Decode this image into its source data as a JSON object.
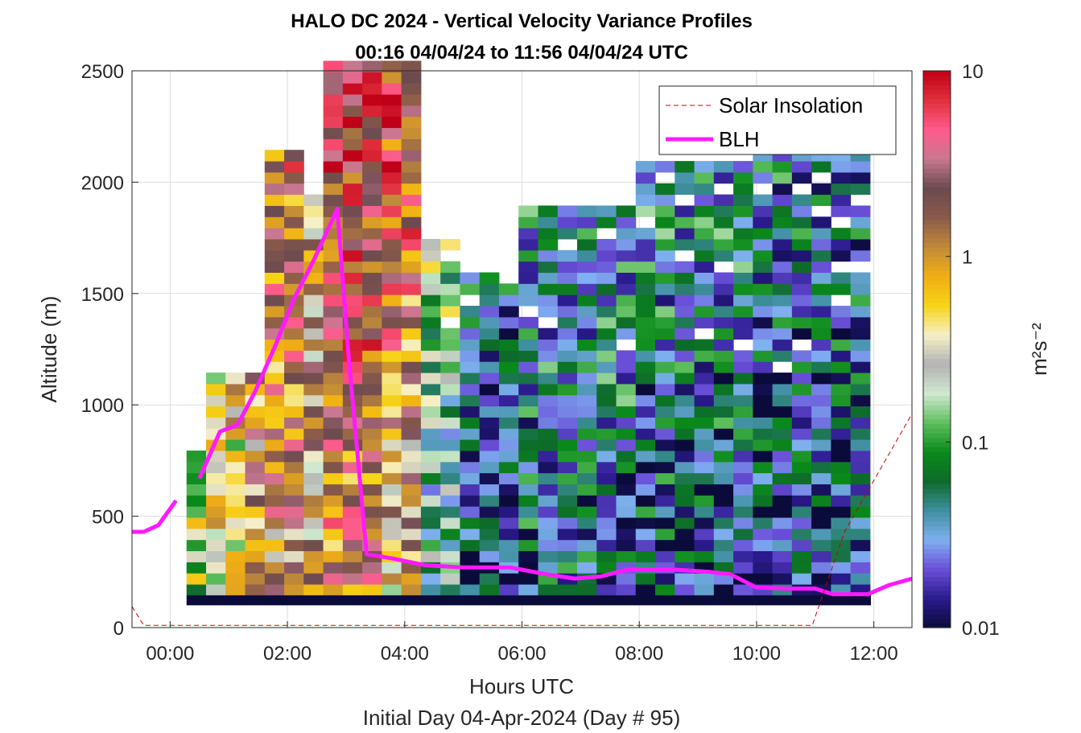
{
  "chart_data": {
    "type": "heatmap",
    "title": "HALO DC 2024 - Vertical Velocity Variance Profiles",
    "subtitle": "00:16 04/04/24 to 11:56 04/04/24  UTC",
    "xlabel": "Hours UTC",
    "xlabel2": "Initial Day 04-Apr-2024 (Day # 95)",
    "ylabel": "Altitude (m)",
    "xlim_hours": [
      -0.65,
      12.65
    ],
    "ylim": [
      0,
      2500
    ],
    "x_ticks": [
      {
        "value": 0,
        "label": "00:00"
      },
      {
        "value": 2,
        "label": "02:00"
      },
      {
        "value": 4,
        "label": "04:00"
      },
      {
        "value": 6,
        "label": "06:00"
      },
      {
        "value": 8,
        "label": "08:00"
      },
      {
        "value": 10,
        "label": "10:00"
      },
      {
        "value": 12,
        "label": "12:00"
      }
    ],
    "y_ticks": [
      {
        "value": 0,
        "label": "0"
      },
      {
        "value": 500,
        "label": "500"
      },
      {
        "value": 1000,
        "label": "1000"
      },
      {
        "value": 1500,
        "label": "1500"
      },
      {
        "value": 2000,
        "label": "2000"
      },
      {
        "value": 2500,
        "label": "2500"
      }
    ],
    "grid": true,
    "colorbar": {
      "scale": "log",
      "range": [
        0.01,
        10
      ],
      "ticks": [
        {
          "value": 0.01,
          "label": "0.01"
        },
        {
          "value": 0.1,
          "label": "0.1"
        },
        {
          "value": 1,
          "label": "1"
        },
        {
          "value": 10,
          "label": "10"
        }
      ],
      "units_label": "m²s⁻²",
      "colors": [
        "#0b0b3b",
        "#2a1a8c",
        "#6a4fd8",
        "#7fb0f0",
        "#3f8fa0",
        "#0d6b2a",
        "#0a8a1a",
        "#5fbf5f",
        "#cfe8cf",
        "#b3b3b3",
        "#f5f0c8",
        "#f7d417",
        "#f0ae14",
        "#c08a3a",
        "#8a5a4a",
        "#6b4a4f",
        "#c87890",
        "#ff5a8c",
        "#e0303c",
        "#c00018"
      ]
    },
    "legend": {
      "placement": "top-right",
      "entries": [
        {
          "label": "Solar Insolation",
          "color": "#cc0000",
          "style": "dashed"
        },
        {
          "label": "BLH",
          "color": "#ff1aff",
          "style": "solid"
        }
      ]
    },
    "series": [
      {
        "name": "BLH",
        "color": "#ff1aff",
        "segments": [
          [
            [
              -0.65,
              430
            ],
            [
              -0.45,
              430
            ],
            [
              -0.2,
              460
            ],
            [
              0.1,
              570
            ]
          ],
          [
            [
              0.5,
              670
            ],
            [
              0.85,
              880
            ],
            [
              1.15,
              910
            ],
            [
              1.45,
              1060
            ],
            [
              1.8,
              1270
            ],
            [
              2.1,
              1470
            ],
            [
              2.45,
              1650
            ],
            [
              2.85,
              1880
            ],
            [
              3.05,
              1200
            ],
            [
              3.35,
              330
            ],
            [
              3.8,
              310
            ],
            [
              4.35,
              280
            ],
            [
              5.0,
              270
            ],
            [
              5.8,
              270
            ],
            [
              6.4,
              240
            ],
            [
              6.9,
              220
            ],
            [
              7.35,
              230
            ],
            [
              7.8,
              260
            ],
            [
              8.6,
              260
            ],
            [
              9.2,
              250
            ],
            [
              9.55,
              240
            ],
            [
              10.0,
              180
            ],
            [
              10.5,
              175
            ],
            [
              11.0,
              175
            ],
            [
              11.3,
              150
            ],
            [
              11.9,
              150
            ],
            [
              12.25,
              190
            ],
            [
              12.65,
              220
            ]
          ]
        ]
      },
      {
        "name": "Solar Insolation",
        "color": "#cc0000",
        "style": "dashed",
        "points": [
          [
            -0.65,
            95
          ],
          [
            -0.45,
            10
          ],
          [
            10.95,
            10
          ],
          [
            11.5,
            430
          ],
          [
            12.65,
            960
          ]
        ]
      }
    ],
    "heatmap": {
      "time_resolution_hours": 0.333,
      "altitude_resolution_m": 50,
      "bottom_layer": {
        "from_hours": 0.28,
        "to_hours": 11.95,
        "from_m": 100,
        "to_m": 145,
        "value": 0.01
      },
      "note": "per-cell variance is rendered procedurally from column profiles"
    }
  },
  "page": {
    "title": "HALO DC 2024 - Vertical Velocity Variance Profiles",
    "subtitle": "00:16 04/04/24 to 11:56 04/04/24  UTC"
  }
}
